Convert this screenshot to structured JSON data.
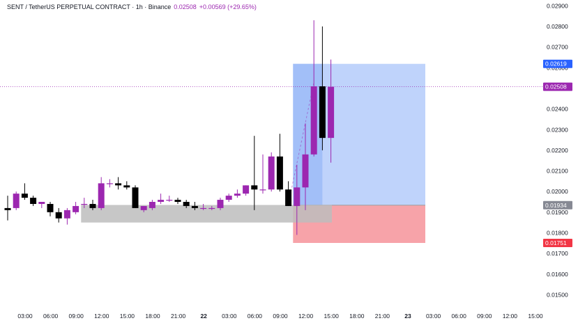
{
  "header": {
    "symbol": "SENT / TetherUS PERPETUAL CONTRACT · 1h · Binance",
    "last_price": "0.02508",
    "change": "+0.00569 (+29.65%)"
  },
  "colors": {
    "up": "#9c27b0",
    "down": "#000000",
    "target_zone": "#bfd3fb",
    "target_tag": "#2962ff",
    "stop_zone": "#f7a3a9",
    "stop_tag": "#f23645",
    "entry_tag": "#868993",
    "last_tag": "#9c27b0",
    "range_box": "#bdbdbd"
  },
  "price_axis": {
    "ticks": [
      "0.02900",
      "0.02800",
      "0.02700",
      "0.02600",
      "0.02500",
      "0.02400",
      "0.02300",
      "0.02200",
      "0.02100",
      "0.02000",
      "0.01900",
      "0.01800",
      "0.01700",
      "0.01600",
      "0.01500"
    ],
    "tick_values": [
      0.029,
      0.028,
      0.027,
      0.026,
      0.025,
      0.024,
      0.023,
      0.022,
      0.021,
      0.02,
      0.019,
      0.018,
      0.017,
      0.016,
      0.015
    ]
  },
  "tags": {
    "target": "0.02619",
    "last": "0.02508",
    "entry": "0.01934",
    "stop": "0.01751"
  },
  "time_axis": {
    "labels": [
      "03:00",
      "06:00",
      "09:00",
      "12:00",
      "15:00",
      "18:00",
      "21:00",
      "22",
      "03:00",
      "06:00",
      "09:00",
      "12:00",
      "15:00",
      "18:00",
      "21:00",
      "23",
      "03:00",
      "06:00",
      "09:00",
      "12:00",
      "15:00"
    ],
    "bold": [
      "22",
      "23"
    ]
  },
  "chart_data": {
    "type": "candlestick",
    "timeframe": "1h",
    "candles": [
      {
        "o": 0.0192,
        "h": 0.0198,
        "l": 0.0186,
        "c": 0.0191
      },
      {
        "o": 0.0192,
        "h": 0.02,
        "l": 0.0191,
        "c": 0.0199
      },
      {
        "o": 0.0199,
        "h": 0.0204,
        "l": 0.0196,
        "c": 0.0197
      },
      {
        "o": 0.0197,
        "h": 0.0198,
        "l": 0.0193,
        "c": 0.0194
      },
      {
        "o": 0.0194,
        "h": 0.0195,
        "l": 0.0192,
        "c": 0.0195
      },
      {
        "o": 0.0194,
        "h": 0.0195,
        "l": 0.0188,
        "c": 0.019
      },
      {
        "o": 0.019,
        "h": 0.0192,
        "l": 0.0185,
        "c": 0.0187
      },
      {
        "o": 0.0187,
        "h": 0.0192,
        "l": 0.0184,
        "c": 0.0191
      },
      {
        "o": 0.019,
        "h": 0.0195,
        "l": 0.0189,
        "c": 0.0193
      },
      {
        "o": 0.0194,
        "h": 0.0197,
        "l": 0.0192,
        "c": 0.0194
      },
      {
        "o": 0.0194,
        "h": 0.0196,
        "l": 0.0191,
        "c": 0.0192
      },
      {
        "o": 0.0192,
        "h": 0.0207,
        "l": 0.0191,
        "c": 0.0204
      },
      {
        "o": 0.0204,
        "h": 0.0206,
        "l": 0.0202,
        "c": 0.0204
      },
      {
        "o": 0.0204,
        "h": 0.0207,
        "l": 0.0201,
        "c": 0.0203
      },
      {
        "o": 0.0203,
        "h": 0.0205,
        "l": 0.0201,
        "c": 0.0202
      },
      {
        "o": 0.0202,
        "h": 0.0203,
        "l": 0.0192,
        "c": 0.0192
      },
      {
        "o": 0.0191,
        "h": 0.0193,
        "l": 0.019,
        "c": 0.0193
      },
      {
        "o": 0.0192,
        "h": 0.0196,
        "l": 0.0191,
        "c": 0.0195
      },
      {
        "o": 0.0195,
        "h": 0.0199,
        "l": 0.0194,
        "c": 0.0196
      },
      {
        "o": 0.0196,
        "h": 0.0198,
        "l": 0.0195,
        "c": 0.0196
      },
      {
        "o": 0.0196,
        "h": 0.0197,
        "l": 0.0194,
        "c": 0.0195
      },
      {
        "o": 0.0195,
        "h": 0.0196,
        "l": 0.0192,
        "c": 0.0193
      },
      {
        "o": 0.0193,
        "h": 0.0195,
        "l": 0.0191,
        "c": 0.0192
      },
      {
        "o": 0.0192,
        "h": 0.0194,
        "l": 0.0191,
        "c": 0.0192
      },
      {
        "o": 0.0192,
        "h": 0.0193,
        "l": 0.0191,
        "c": 0.0192
      },
      {
        "o": 0.0192,
        "h": 0.0197,
        "l": 0.0191,
        "c": 0.0196
      },
      {
        "o": 0.0196,
        "h": 0.0199,
        "l": 0.0195,
        "c": 0.0198
      },
      {
        "o": 0.0198,
        "h": 0.0201,
        "l": 0.0197,
        "c": 0.0199
      },
      {
        "o": 0.0199,
        "h": 0.0203,
        "l": 0.0198,
        "c": 0.0203
      },
      {
        "o": 0.0203,
        "h": 0.0227,
        "l": 0.0191,
        "c": 0.0201
      },
      {
        "o": 0.0201,
        "h": 0.0218,
        "l": 0.0199,
        "c": 0.0201
      },
      {
        "o": 0.0201,
        "h": 0.0219,
        "l": 0.02,
        "c": 0.0217
      },
      {
        "o": 0.0217,
        "h": 0.0228,
        "l": 0.02,
        "c": 0.0201
      },
      {
        "o": 0.0201,
        "h": 0.0205,
        "l": 0.0193,
        "c": 0.0193
      },
      {
        "o": 0.0193,
        "h": 0.0213,
        "l": 0.0179,
        "c": 0.0202
      },
      {
        "o": 0.0202,
        "h": 0.0233,
        "l": 0.0191,
        "c": 0.0218
      },
      {
        "o": 0.0218,
        "h": 0.0283,
        "l": 0.0217,
        "c": 0.0251
      },
      {
        "o": 0.0251,
        "h": 0.028,
        "l": 0.022,
        "c": 0.0226
      },
      {
        "o": 0.0226,
        "h": 0.0264,
        "l": 0.0214,
        "c": 0.02508
      }
    ],
    "range_box": {
      "top": 0.01935,
      "bottom": 0.0185,
      "from_index": 9,
      "to_index": 39
    },
    "long_position": {
      "entry": 0.01934,
      "target": 0.02619,
      "stop": 0.01751,
      "from_index": 34,
      "to_index": 49
    },
    "ylim": [
      0.0146,
      0.0294
    ],
    "grid": false
  }
}
